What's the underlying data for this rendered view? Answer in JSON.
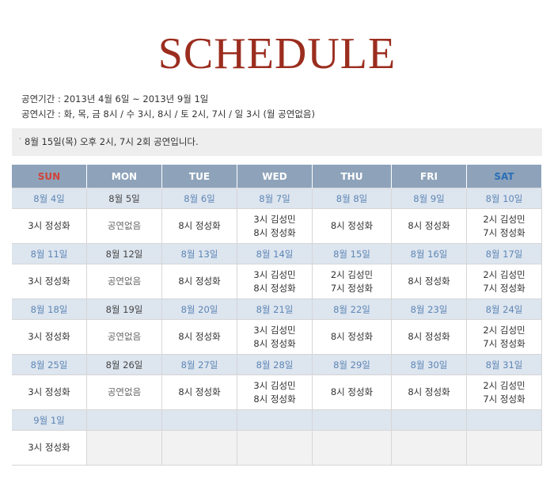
{
  "title": "SCHEDULE",
  "info": {
    "period": "공연기간 : 2013년 4월 6일 ~ 2013년 9월 1일",
    "times": "공연시간 : 화, 목, 금 8시 / 수 3시, 8시 / 토 2시, 7시 / 일 3시 (월 공연없음)"
  },
  "notice": {
    "bullet": "·",
    "text": "8월 15일(목) 오후 2시, 7시 2회 공연입니다."
  },
  "colors": {
    "title": "#9b2d1f",
    "header_bg": "#8ea3ba",
    "sun": "#d0433a",
    "sat": "#2a6fb6",
    "date_bg": "#dde5ef",
    "date_text": "#5d86b5"
  },
  "days": [
    "SUN",
    "MON",
    "TUE",
    "WED",
    "THU",
    "FRI",
    "SAT"
  ],
  "weeks": [
    {
      "dates": [
        "8월 4일",
        "8월 5일",
        "8월 6일",
        "8월 7일",
        "8월 8일",
        "8월 9일",
        "8월 10일"
      ],
      "shows": [
        [
          "3시 정성화"
        ],
        [
          "공연없음"
        ],
        [
          "8시 정성화"
        ],
        [
          "3시 김성민",
          "8시 정성화"
        ],
        [
          "8시 정성화"
        ],
        [
          "8시 정성화"
        ],
        [
          "2시 김성민",
          "7시 정성화"
        ]
      ]
    },
    {
      "dates": [
        "8월 11일",
        "8월 12일",
        "8월 13일",
        "8월 14일",
        "8월 15일",
        "8월 16일",
        "8월 17일"
      ],
      "shows": [
        [
          "3시 정성화"
        ],
        [
          "공연없음"
        ],
        [
          "8시 정성화"
        ],
        [
          "3시 김성민",
          "8시 정성화"
        ],
        [
          "2시 김성민",
          "7시 정성화"
        ],
        [
          "8시 정성화"
        ],
        [
          "2시 김성민",
          "7시 정성화"
        ]
      ]
    },
    {
      "dates": [
        "8월 18일",
        "8월 19일",
        "8월 20일",
        "8월 21일",
        "8월 22일",
        "8월 23일",
        "8월 24일"
      ],
      "shows": [
        [
          "3시 정성화"
        ],
        [
          "공연없음"
        ],
        [
          "8시 정성화"
        ],
        [
          "3시 김성민",
          "8시 정성화"
        ],
        [
          "8시 정성화"
        ],
        [
          "8시  정성화"
        ],
        [
          "2시 김성민",
          "7시 정성화"
        ]
      ]
    },
    {
      "dates": [
        "8월 25일",
        "8월 26일",
        "8월 27일",
        "8월 28일",
        "8월 29일",
        "8월 30일",
        "8월 31일"
      ],
      "shows": [
        [
          "3시 정성화"
        ],
        [
          "공연없음"
        ],
        [
          "8시 정성화"
        ],
        [
          "3시 김성민",
          "8시 정성화"
        ],
        [
          "8시 정성화"
        ],
        [
          "8시 정성화"
        ],
        [
          "2시 김성민",
          "7시 정성화"
        ]
      ]
    },
    {
      "dates": [
        "9월 1일",
        "",
        "",
        "",
        "",
        "",
        ""
      ],
      "shows": [
        [
          "3시 정성화"
        ],
        [],
        [],
        [],
        [],
        [],
        []
      ]
    }
  ]
}
